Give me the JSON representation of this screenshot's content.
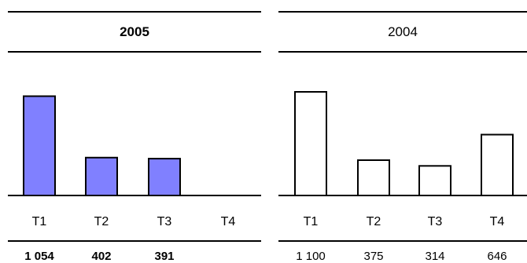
{
  "chart_data": [
    {
      "type": "bar",
      "title": "2005",
      "categories": [
        "T1",
        "T2",
        "T3",
        "T4"
      ],
      "values": [
        1054,
        402,
        391,
        null
      ],
      "value_labels": [
        "1 054",
        "402",
        "391",
        ""
      ],
      "ylim": [
        0,
        1200
      ],
      "bar_color": "#8080ff",
      "bold": true
    },
    {
      "type": "bar",
      "title": "2004",
      "categories": [
        "T1",
        "T2",
        "T3",
        "T4"
      ],
      "values": [
        1100,
        375,
        314,
        646
      ],
      "value_labels": [
        "1 100",
        "375",
        "314",
        "646"
      ],
      "ylim": [
        0,
        1200
      ],
      "bar_color": "#ffffff",
      "bold": false
    }
  ]
}
